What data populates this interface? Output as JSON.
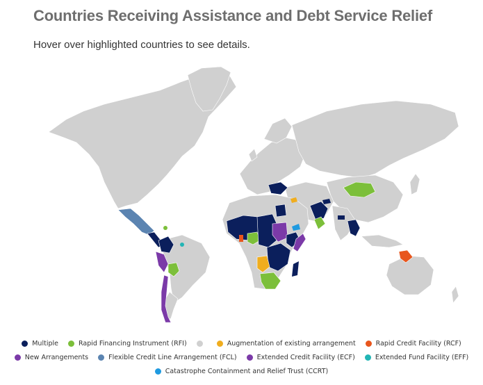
{
  "header": {
    "title": "Countries Receiving Assistance and Debt Service Relief",
    "subtitle": "Hover over highlighted countries to see details."
  },
  "colors": {
    "multiple": "#0b1f5c",
    "rfi": "#7cbf3a",
    "none": "#d0d0d0",
    "augmentation": "#f0ad1e",
    "rcf": "#e8561d",
    "new": "#7b3aa8",
    "fcl": "#5b84b1",
    "ecf": "#7b3aa8",
    "eff": "#22b5b5",
    "ccrt": "#1f9ae0"
  },
  "legend": {
    "row1": [
      {
        "label": "Multiple",
        "color": "#0b1f5c"
      },
      {
        "label": "Rapid Financing Instrument (RFI)",
        "color": "#7cbf3a"
      },
      {
        "label": "",
        "color": "#d0d0d0"
      },
      {
        "label": "Augmentation of existing arrangement",
        "color": "#f0ad1e"
      },
      {
        "label": "Rapid Credit Facility (RCF)",
        "color": "#e8561d"
      }
    ],
    "row2": [
      {
        "label": "New Arrangements",
        "color": "#7b3aa8"
      },
      {
        "label": "Flexible Credit Line Arrangement (FCL)",
        "color": "#5b84b1"
      },
      {
        "label": "Extended Credit Facility (ECF)",
        "color": "#7b3aa8"
      },
      {
        "label": "Extended Fund Facility (EFF)",
        "color": "#22b5b5"
      }
    ],
    "row3": [
      {
        "label": "Catastrophe Containment and Relief Trust (CCRT)",
        "color": "#1f9ae0"
      }
    ]
  }
}
